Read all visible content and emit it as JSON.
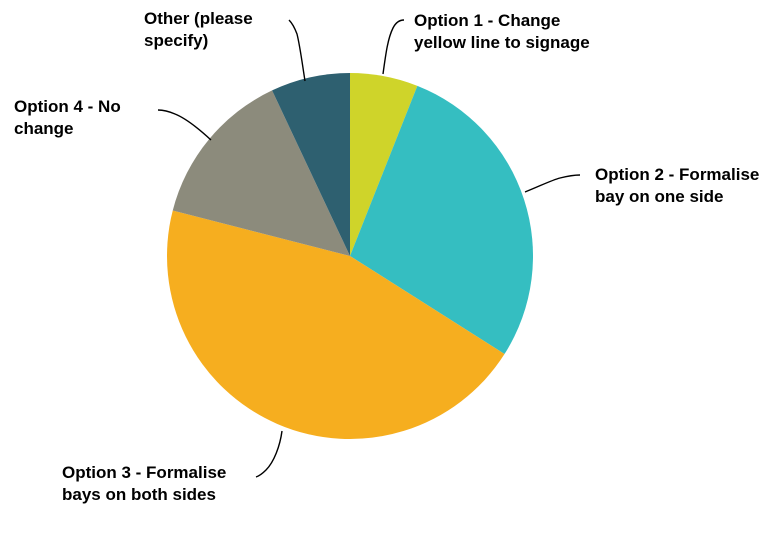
{
  "chart_data": {
    "type": "pie",
    "title": "",
    "start_angle_deg": 0,
    "direction": "clockwise",
    "slices": [
      {
        "label": "Option 1 - Change yellow line to signage",
        "value": 6,
        "color": "#cfd42a"
      },
      {
        "label": "Option 2 - Formalise bay on one side",
        "value": 28,
        "color": "#35bec1"
      },
      {
        "label": "Option 3 - Formalise bays on both sides",
        "value": 45,
        "color": "#f6ae1f"
      },
      {
        "label": "Option 4 - No change",
        "value": 14,
        "color": "#8c8b7c"
      },
      {
        "label": "Other (please specify)",
        "value": 7,
        "color": "#2e6070"
      }
    ]
  }
}
